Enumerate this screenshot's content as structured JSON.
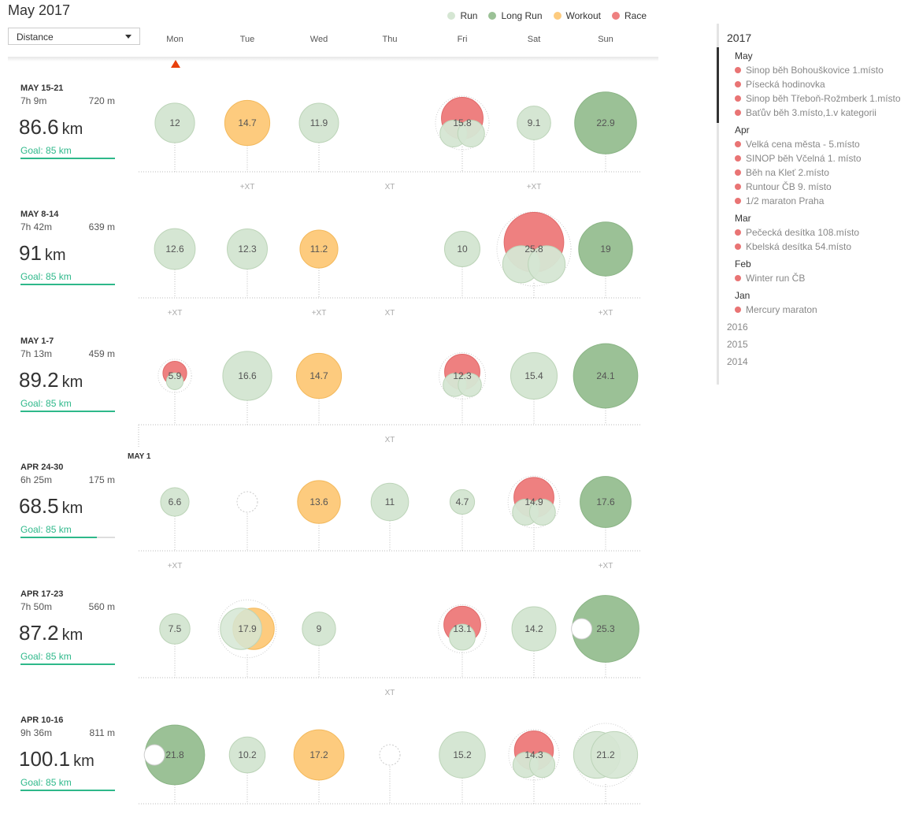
{
  "title": "May 2017",
  "metric_select": {
    "value": "Distance"
  },
  "legend": [
    {
      "label": "Run",
      "color": "#d5e6d3"
    },
    {
      "label": "Long Run",
      "color": "#9bc196"
    },
    {
      "label": "Workout",
      "color": "#fdcb7e"
    },
    {
      "label": "Race",
      "color": "#ee8080"
    }
  ],
  "days": [
    "Mon",
    "Tue",
    "Wed",
    "Thu",
    "Fri",
    "Sat",
    "Sun"
  ],
  "weeks": [
    {
      "label": "MAY 15-21",
      "time": "7h 9m",
      "elevation": "720 m",
      "distance": "86.6",
      "unit": "km",
      "goal": "Goal: 85 km",
      "progress": 1.0,
      "runs": [
        {
          "day": 0,
          "value": "12",
          "km": 12,
          "type": "run"
        },
        {
          "day": 1,
          "value": "14.7",
          "km": 14.7,
          "type": "workout"
        },
        {
          "day": 2,
          "value": "11.9",
          "km": 11.9,
          "type": "run"
        },
        {
          "day": 4,
          "value": "15.8",
          "km": 15.8,
          "type": "race",
          "extras": 2
        },
        {
          "day": 5,
          "value": "9.1",
          "km": 9.1,
          "type": "run"
        },
        {
          "day": 6,
          "value": "22.9",
          "km": 22.9,
          "type": "long"
        }
      ],
      "xt": [
        {
          "day": 1,
          "text": "+XT"
        },
        {
          "day": 3,
          "text": "XT"
        },
        {
          "day": 5,
          "text": "+XT"
        }
      ]
    },
    {
      "label": "MAY 8-14",
      "time": "7h 42m",
      "elevation": "639 m",
      "distance": "91",
      "unit": "km",
      "goal": "Goal: 85 km",
      "progress": 1.0,
      "runs": [
        {
          "day": 0,
          "value": "12.6",
          "km": 12.6,
          "type": "run"
        },
        {
          "day": 1,
          "value": "12.3",
          "km": 12.3,
          "type": "run"
        },
        {
          "day": 2,
          "value": "11.2",
          "km": 11.2,
          "type": "workout"
        },
        {
          "day": 4,
          "value": "10",
          "km": 10,
          "type": "run"
        },
        {
          "day": 5,
          "value": "25.8",
          "km": 25.8,
          "type": "race",
          "extras": 2
        },
        {
          "day": 6,
          "value": "19",
          "km": 19,
          "type": "long"
        }
      ],
      "xt": [
        {
          "day": 0,
          "text": "+XT"
        },
        {
          "day": 2,
          "text": "+XT"
        },
        {
          "day": 3,
          "text": "XT"
        },
        {
          "day": 6,
          "text": "+XT"
        }
      ]
    },
    {
      "label": "MAY 1-7",
      "time": "7h 13m",
      "elevation": "459 m",
      "distance": "89.2",
      "unit": "km",
      "goal": "Goal: 85 km",
      "progress": 1.0,
      "runs": [
        {
          "day": 0,
          "value": "5.9",
          "km": 5.9,
          "type": "race",
          "extras": 1
        },
        {
          "day": 1,
          "value": "16.6",
          "km": 16.6,
          "type": "run"
        },
        {
          "day": 2,
          "value": "14.7",
          "km": 14.7,
          "type": "workout"
        },
        {
          "day": 4,
          "value": "12.3",
          "km": 12.3,
          "type": "race",
          "extras": 2
        },
        {
          "day": 5,
          "value": "15.4",
          "km": 15.4,
          "type": "run"
        },
        {
          "day": 6,
          "value": "24.1",
          "km": 24.1,
          "type": "long"
        }
      ],
      "xt": [
        {
          "day": 3,
          "text": "XT"
        }
      ],
      "month_marker": "MAY 1"
    },
    {
      "label": "APR 24-30",
      "time": "6h 25m",
      "elevation": "175 m",
      "distance": "68.5",
      "unit": "km",
      "goal": "Goal: 85 km",
      "progress": 0.81,
      "runs": [
        {
          "day": 0,
          "value": "6.6",
          "km": 6.6,
          "type": "run"
        },
        {
          "day": 1,
          "value": "",
          "km": 4,
          "type": "empty"
        },
        {
          "day": 2,
          "value": "13.6",
          "km": 13.6,
          "type": "workout"
        },
        {
          "day": 3,
          "value": "11",
          "km": 11,
          "type": "run"
        },
        {
          "day": 4,
          "value": "4.7",
          "km": 4.7,
          "type": "run"
        },
        {
          "day": 5,
          "value": "14.9",
          "km": 14.9,
          "type": "race",
          "extras": 2
        },
        {
          "day": 6,
          "value": "17.6",
          "km": 17.6,
          "type": "long"
        }
      ],
      "xt": [
        {
          "day": 0,
          "text": "+XT"
        },
        {
          "day": 6,
          "text": "+XT"
        }
      ]
    },
    {
      "label": "APR 17-23",
      "time": "7h 50m",
      "elevation": "560 m",
      "distance": "87.2",
      "unit": "km",
      "goal": "Goal: 85 km",
      "progress": 1.0,
      "runs": [
        {
          "day": 0,
          "value": "7.5",
          "km": 7.5,
          "type": "run"
        },
        {
          "day": 1,
          "value": "17.9",
          "km": 17.9,
          "type": "workout-run"
        },
        {
          "day": 2,
          "value": "9",
          "km": 9,
          "type": "run"
        },
        {
          "day": 4,
          "value": "13.1",
          "km": 13.1,
          "type": "race",
          "extras": 1
        },
        {
          "day": 5,
          "value": "14.2",
          "km": 14.2,
          "type": "run"
        },
        {
          "day": 6,
          "value": "25.3",
          "km": 25.3,
          "type": "long",
          "hole": true
        }
      ],
      "xt": [
        {
          "day": 3,
          "text": "XT"
        }
      ]
    },
    {
      "label": "APR 10-16",
      "time": "9h 36m",
      "elevation": "811 m",
      "distance": "100.1",
      "unit": "km",
      "goal": "Goal: 85 km",
      "progress": 1.0,
      "runs": [
        {
          "day": 0,
          "value": "21.8",
          "km": 21.8,
          "type": "long",
          "hole": true
        },
        {
          "day": 1,
          "value": "10.2",
          "km": 10.2,
          "type": "run"
        },
        {
          "day": 2,
          "value": "17.2",
          "km": 17.2,
          "type": "workout"
        },
        {
          "day": 3,
          "value": "",
          "km": 4,
          "type": "empty"
        },
        {
          "day": 4,
          "value": "15.2",
          "km": 15.2,
          "type": "run"
        },
        {
          "day": 5,
          "value": "14.3",
          "km": 14.3,
          "type": "race",
          "extras": 2
        },
        {
          "day": 6,
          "value": "21.2",
          "km": 21.2,
          "type": "run-double"
        }
      ],
      "xt": []
    }
  ],
  "sidebar": {
    "year": "2017",
    "months": [
      {
        "name": "May",
        "races": [
          "Sinop běh Bohouškovice 1.místo",
          "Písecká hodinovka",
          "Sinop běh Třeboň-Rožmberk 1.místo",
          "Baťův běh 3.místo,1.v kategorii"
        ]
      },
      {
        "name": "Apr",
        "races": [
          "Velká cena města - 5.místo",
          "SINOP běh Včelná 1. místo",
          "Běh na Kleť 2.místo",
          "Runtour ČB 9. místo",
          "1/2 maraton Praha"
        ]
      },
      {
        "name": "Mar",
        "races": [
          "Pečecká desítka 108.místo",
          "Kbelská desítka 54.místo"
        ]
      },
      {
        "name": "Feb",
        "races": [
          "Winter run ČB"
        ]
      },
      {
        "name": "Jan",
        "races": [
          "Mercury maraton"
        ]
      }
    ],
    "other_years": [
      "2016",
      "2015",
      "2014"
    ]
  }
}
